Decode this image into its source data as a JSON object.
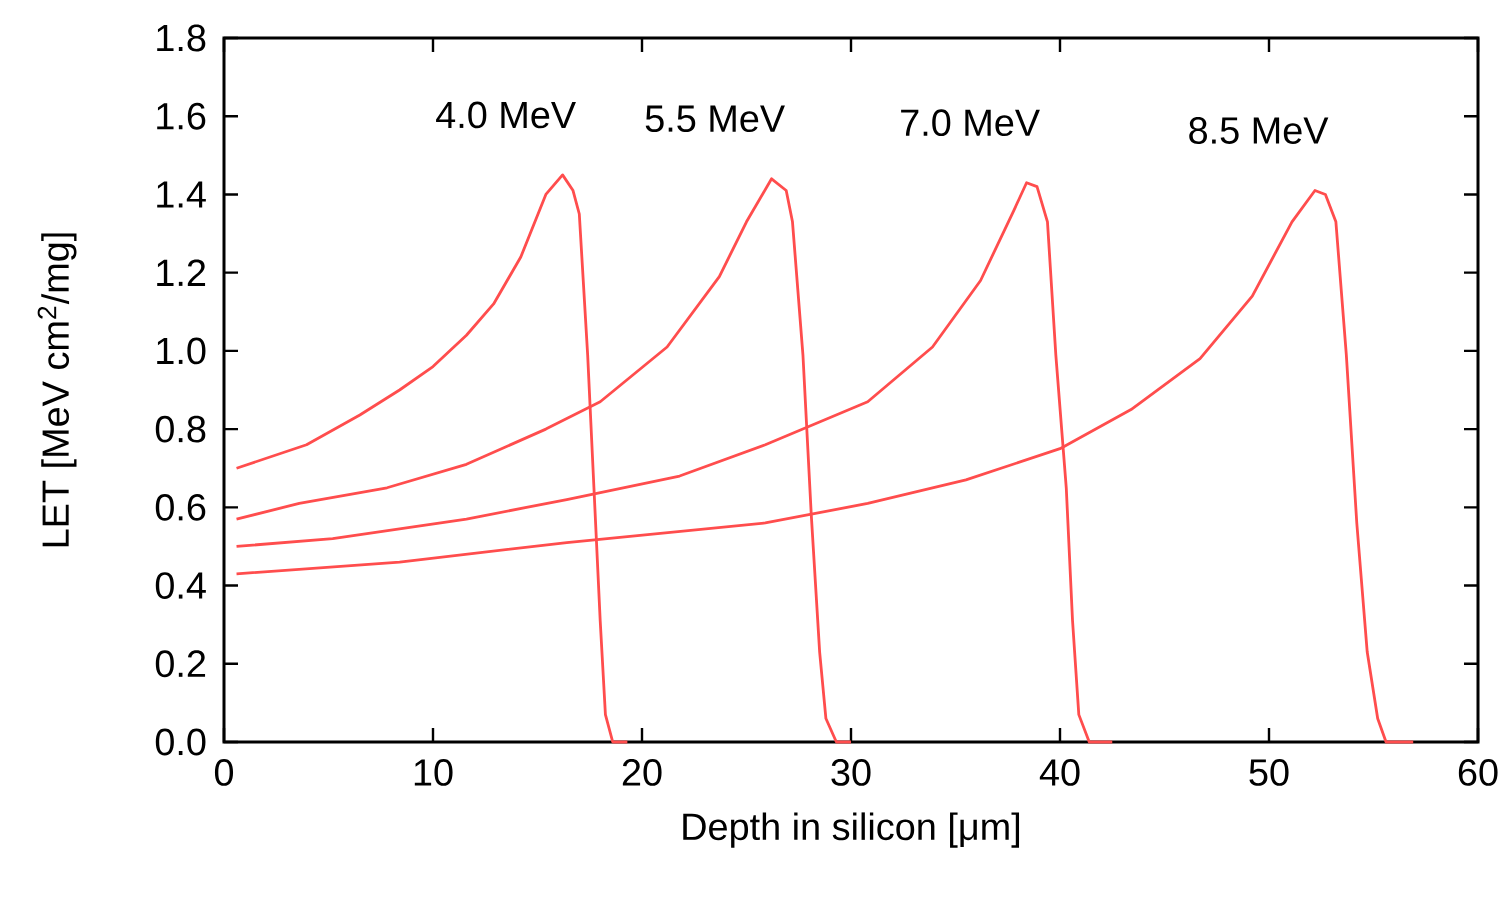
{
  "chart_data": {
    "type": "line",
    "xlabel": "Depth in silicon [μm]",
    "ylabel": "LET [MeV cm$^{2}$/mg]",
    "xlim": [
      0,
      60
    ],
    "ylim": [
      0,
      1.8
    ],
    "xticks": [
      0,
      10,
      20,
      30,
      40,
      50,
      60
    ],
    "yticks": [
      {
        "value": 0,
        "label": "0.0"
      },
      {
        "value": 0.2,
        "label": "0.2"
      },
      {
        "value": 0.4,
        "label": "0.4"
      },
      {
        "value": 0.6,
        "label": "0.6"
      },
      {
        "value": 0.8,
        "label": "0.8"
      },
      {
        "value": 1.0,
        "label": "1.0"
      },
      {
        "value": 1.2,
        "label": "1.2"
      },
      {
        "value": 1.4,
        "label": "1.4"
      },
      {
        "value": 1.6,
        "label": "1.6"
      },
      {
        "value": 1.8,
        "label": "1.8"
      }
    ],
    "grid": false,
    "legend": false,
    "marker": "none",
    "series": [
      {
        "name": "4.0 MeV",
        "color": "#ff4d4d",
        "x": [
          0.6,
          3.95,
          6.5,
          8.4,
          10.0,
          11.6,
          12.9,
          14.2,
          15.4,
          16.2,
          16.7,
          17.0,
          17.4,
          17.7,
          18.0,
          18.25,
          18.6,
          19.3
        ],
        "values": [
          0.7,
          0.76,
          0.836,
          0.9,
          0.96,
          1.04,
          1.12,
          1.24,
          1.4,
          1.45,
          1.41,
          1.35,
          0.99,
          0.65,
          0.31,
          0.07,
          0.0,
          0.0
        ]
      },
      {
        "name": "5.5 MeV",
        "color": "#ff4d4d",
        "x": [
          0.6,
          3.6,
          7.8,
          11.6,
          15.4,
          18.0,
          21.2,
          23.7,
          25.0,
          26.2,
          26.9,
          27.2,
          27.7,
          28.1,
          28.5,
          28.8,
          29.3,
          30.0
        ],
        "values": [
          0.57,
          0.61,
          0.65,
          0.71,
          0.8,
          0.87,
          1.01,
          1.19,
          1.33,
          1.44,
          1.41,
          1.33,
          0.99,
          0.58,
          0.23,
          0.06,
          0.0,
          0.0
        ]
      },
      {
        "name": "7.0 MeV",
        "color": "#ff4d4d",
        "x": [
          0.6,
          5.2,
          11.6,
          16.4,
          21.8,
          25.9,
          30.8,
          33.9,
          36.2,
          37.8,
          38.4,
          38.9,
          39.4,
          39.8,
          40.3,
          40.6,
          40.9,
          41.4,
          42.5
        ],
        "values": [
          0.5,
          0.52,
          0.57,
          0.62,
          0.68,
          0.76,
          0.87,
          1.01,
          1.18,
          1.36,
          1.43,
          1.42,
          1.33,
          0.99,
          0.65,
          0.31,
          0.07,
          0.0,
          0.0
        ]
      },
      {
        "name": "8.5 MeV",
        "color": "#ff4d4d",
        "x": [
          0.6,
          8.4,
          16.4,
          25.9,
          30.8,
          35.5,
          40.0,
          43.4,
          46.7,
          49.2,
          51.1,
          52.2,
          52.7,
          53.2,
          53.7,
          54.2,
          54.7,
          55.2,
          55.6,
          56.9
        ],
        "values": [
          0.43,
          0.46,
          0.51,
          0.56,
          0.61,
          0.67,
          0.75,
          0.85,
          0.98,
          1.14,
          1.33,
          1.41,
          1.4,
          1.33,
          0.99,
          0.56,
          0.23,
          0.06,
          0.0,
          0.0
        ]
      }
    ]
  }
}
